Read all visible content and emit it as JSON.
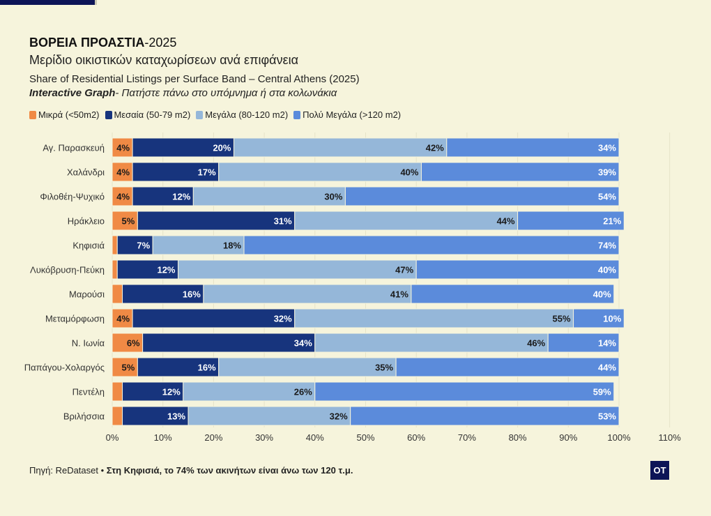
{
  "header": {
    "title_bold": "ΒΟΡΕΙΑ ΠΡΟΑΣΤΙΑ",
    "title_rest": "-2025",
    "subtitle": "Μερίδιο οικιστικών καταχωρίσεων ανά επιφάνεια",
    "subtitle_en": "Share of Residential Listings per Surface Band – Central Athens (2025)",
    "hint_bold": "Interactive Graph",
    "hint_rest": "- Πατήστε πάνω στο υπόμνημα ή στα κολωνάκια"
  },
  "footer": {
    "source": "Πηγή: ReDataset",
    "separator": " • ",
    "note": "Στη Κηφισιά, το 74% των ακινήτων είναι άνω των 120 τ.μ.",
    "logo": "OT"
  },
  "colors": {
    "background": "#f6f4dc",
    "small": "#f08a45",
    "medium": "#17347d",
    "large": "#95b7d9",
    "very_large": "#5b8bdb"
  },
  "chart_data": {
    "type": "bar",
    "orientation": "horizontal",
    "stacked": true,
    "categories": [
      "Αγ. Παρασκευή",
      "Χαλάνδρι",
      "Φιλοθέη-Ψυχικό",
      "Ηράκλειο",
      "Κηφισιά",
      "Λυκόβρυση-Πεύκη",
      "Μαρούσι",
      "Μεταμόρφωση",
      "Ν. Ιωνία",
      "Παπάγου-Χολαργός",
      "Πεντέλη",
      "Βριλήσσια"
    ],
    "series": [
      {
        "name": "Μικρά (<50m2)",
        "color": "#f08a45",
        "label_color": "#1a1a1a",
        "values": [
          4,
          4,
          4,
          5,
          1,
          1,
          2,
          4,
          6,
          5,
          2,
          2
        ],
        "labels": [
          "4%",
          "4%",
          "4%",
          "5%",
          "",
          "",
          "",
          "4%",
          "6%",
          "5%",
          "",
          ""
        ]
      },
      {
        "name": "Μεσαία (50-79 m2)",
        "color": "#17347d",
        "label_color": "#ffffff",
        "values": [
          20,
          17,
          12,
          31,
          7,
          12,
          16,
          32,
          34,
          16,
          12,
          13
        ],
        "labels": [
          "20%",
          "17%",
          "12%",
          "31%",
          "7%",
          "12%",
          "16%",
          "32%",
          "34%",
          "16%",
          "12%",
          "13%"
        ]
      },
      {
        "name": "Μεγάλα (80-120 m2)",
        "color": "#95b7d9",
        "label_color": "#1a1a1a",
        "values": [
          42,
          40,
          30,
          44,
          18,
          47,
          41,
          55,
          46,
          35,
          26,
          32
        ],
        "labels": [
          "42%",
          "40%",
          "30%",
          "44%",
          "18%",
          "47%",
          "41%",
          "55%",
          "46%",
          "35%",
          "26%",
          "32%"
        ]
      },
      {
        "name": "Πολύ Μεγάλα (>120 m2)",
        "color": "#5b8bdb",
        "label_color": "#ffffff",
        "values": [
          34,
          39,
          54,
          21,
          74,
          40,
          40,
          10,
          14,
          44,
          59,
          53
        ],
        "labels": [
          "34%",
          "39%",
          "54%",
          "21%",
          "74%",
          "40%",
          "40%",
          "10%",
          "14%",
          "44%",
          "59%",
          "53%"
        ]
      }
    ],
    "xlim": [
      0,
      110
    ],
    "xticks": [
      "0%",
      "10%",
      "20%",
      "30%",
      "40%",
      "50%",
      "60%",
      "70%",
      "80%",
      "90%",
      "100%",
      "110%"
    ],
    "xlabel": "",
    "ylabel": "",
    "legend_position": "top-left",
    "grid": true
  }
}
